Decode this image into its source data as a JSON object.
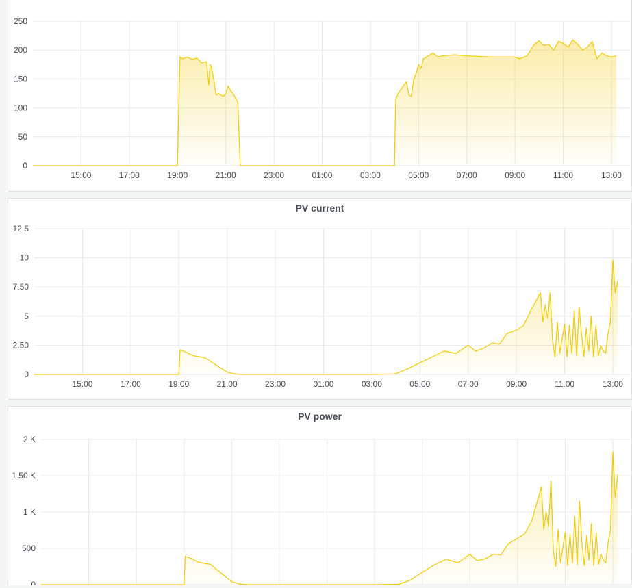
{
  "colors": {
    "series": "#f2cc0c",
    "grid": "#e9e9e9",
    "text": "#464c54",
    "background": "#ffffff"
  },
  "panels": [
    {
      "title": "",
      "chart_data": {
        "type": "area",
        "title": "",
        "x_ticks": [
          "15:00",
          "17:00",
          "19:00",
          "21:00",
          "23:00",
          "01:00",
          "03:00",
          "05:00",
          "07:00",
          "09:00",
          "11:00",
          "13:00"
        ],
        "y_ticks": [
          "0",
          "50",
          "100",
          "150",
          "200",
          "250"
        ],
        "ylim": [
          0,
          250
        ],
        "xlim_hours": [
          13.0,
          37.2
        ],
        "grid": true,
        "series": [
          {
            "x_hours": [
              13.0,
              14.0,
              15.0,
              16.0,
              17.0,
              18.0,
              19.0,
              19.05,
              19.1,
              19.2,
              19.4,
              19.6,
              19.8,
              20.0,
              20.2,
              20.3,
              20.35,
              20.4,
              20.5,
              20.6,
              20.7,
              20.9,
              21.0,
              21.1,
              21.2,
              21.3,
              21.4,
              21.5,
              21.6,
              21.65,
              22.0,
              23.0,
              24.0,
              25.0,
              26.0,
              27.0,
              28.0,
              28.05,
              28.1,
              28.2,
              28.4,
              28.5,
              28.6,
              28.7,
              28.8,
              28.9,
              29.0,
              29.1,
              29.2,
              29.4,
              29.6,
              29.8,
              30.0,
              30.5,
              31.0,
              31.5,
              32.0,
              32.5,
              33.0,
              33.2,
              33.5,
              33.8,
              34.0,
              34.2,
              34.4,
              34.6,
              34.8,
              35.0,
              35.2,
              35.4,
              35.6,
              35.8,
              36.0,
              36.2,
              36.4,
              36.6,
              36.8,
              37.0,
              37.2
            ],
            "y": [
              0,
              0,
              0,
              0,
              0,
              0,
              0,
              100,
              188,
              185,
              188,
              184,
              186,
              178,
              180,
              140,
              175,
              172,
              150,
              122,
              125,
              120,
              125,
              138,
              130,
              125,
              118,
              110,
              0,
              0,
              0,
              0,
              0,
              0,
              0,
              0,
              0,
              115,
              120,
              128,
              140,
              145,
              122,
              120,
              150,
              160,
              175,
              168,
              185,
              190,
              195,
              188,
              190,
              192,
              190,
              189,
              188,
              188,
              188,
              185,
              190,
              210,
              216,
              208,
              210,
              200,
              215,
              212,
              205,
              218,
              210,
              200,
              205,
              215,
              185,
              195,
              190,
              188,
              190
            ]
          }
        ]
      }
    },
    {
      "title": "PV current",
      "chart_data": {
        "type": "area",
        "title": "PV current",
        "x_ticks": [
          "15:00",
          "17:00",
          "19:00",
          "21:00",
          "23:00",
          "01:00",
          "03:00",
          "05:00",
          "07:00",
          "09:00",
          "11:00",
          "13:00"
        ],
        "y_ticks": [
          "0",
          "2.50",
          "5",
          "7.50",
          "10",
          "12.5"
        ],
        "ylim": [
          0,
          12.5
        ],
        "xlim_hours": [
          13.0,
          37.2
        ],
        "grid": true,
        "series": [
          {
            "x_hours": [
              13.0,
              15.0,
              17.0,
              18.9,
              19.0,
              19.05,
              19.3,
              19.6,
              19.9,
              20.1,
              20.4,
              20.7,
              21.0,
              21.3,
              21.6,
              22.0,
              23.0,
              24.0,
              25.0,
              26.0,
              27.0,
              28.0,
              28.5,
              29.0,
              29.5,
              30.0,
              30.5,
              31.0,
              31.3,
              31.6,
              32.0,
              32.3,
              32.6,
              33.0,
              33.3,
              33.6,
              34.0,
              34.1,
              34.2,
              34.3,
              34.4,
              34.5,
              34.6,
              34.7,
              34.8,
              35.0,
              35.1,
              35.2,
              35.3,
              35.4,
              35.5,
              35.6,
              35.7,
              35.8,
              35.9,
              36.0,
              36.1,
              36.2,
              36.3,
              36.4,
              36.5,
              36.6,
              36.7,
              36.8,
              36.9,
              37.0,
              37.05,
              37.1,
              37.2
            ],
            "y": [
              0,
              0,
              0,
              0,
              0,
              2.1,
              1.9,
              1.6,
              1.5,
              1.4,
              1.0,
              0.6,
              0.2,
              0.05,
              0,
              0,
              0,
              0,
              0,
              0,
              0,
              0.05,
              0.5,
              1.0,
              1.5,
              2.0,
              1.8,
              2.5,
              2.0,
              2.2,
              2.7,
              2.6,
              3.5,
              3.8,
              4.2,
              5.5,
              7.0,
              4.5,
              6.0,
              4.8,
              7.0,
              3.0,
              1.5,
              4.5,
              1.8,
              4.3,
              1.5,
              4.2,
              1.8,
              5.5,
              1.6,
              5.8,
              3.5,
              1.5,
              4.0,
              2.0,
              5.0,
              1.5,
              4.2,
              1.6,
              2.5,
              2.0,
              1.8,
              3.5,
              4.5,
              9.8,
              8.5,
              7.0,
              8.0
            ]
          }
        ]
      }
    },
    {
      "title": "PV power",
      "chart_data": {
        "type": "area",
        "title": "PV power",
        "x_ticks": [],
        "y_ticks": [
          "0",
          "500",
          "1 K",
          "1.50 K",
          "2 K"
        ],
        "ylim": [
          0,
          2000
        ],
        "xlim_hours": [
          13.0,
          37.2
        ],
        "grid": true,
        "series": [
          {
            "x_hours": [
              13.0,
              15.0,
              17.0,
              18.9,
              19.0,
              19.05,
              19.3,
              19.6,
              19.9,
              20.1,
              20.4,
              20.7,
              21.0,
              21.3,
              21.6,
              22.0,
              23.0,
              24.0,
              25.0,
              26.0,
              27.0,
              28.0,
              28.5,
              29.0,
              29.5,
              30.0,
              30.5,
              31.0,
              31.3,
              31.6,
              32.0,
              32.3,
              32.6,
              33.0,
              33.3,
              33.6,
              34.0,
              34.1,
              34.2,
              34.3,
              34.4,
              34.5,
              34.6,
              34.7,
              34.8,
              35.0,
              35.1,
              35.2,
              35.3,
              35.4,
              35.5,
              35.6,
              35.7,
              35.8,
              35.9,
              36.0,
              36.1,
              36.2,
              36.3,
              36.4,
              36.5,
              36.6,
              36.7,
              36.8,
              36.9,
              37.0,
              37.05,
              37.1,
              37.2
            ],
            "y": [
              0,
              0,
              0,
              0,
              0,
              390,
              360,
              310,
              290,
              280,
              200,
              120,
              40,
              10,
              0,
              0,
              0,
              0,
              0,
              0,
              0,
              5,
              60,
              170,
              270,
              350,
              300,
              420,
              330,
              350,
              420,
              410,
              560,
              640,
              700,
              880,
              1350,
              760,
              1000,
              800,
              1430,
              470,
              250,
              760,
              300,
              720,
              260,
              700,
              300,
              940,
              270,
              1150,
              580,
              260,
              680,
              340,
              840,
              260,
              720,
              280,
              420,
              340,
              300,
              580,
              760,
              1830,
              1500,
              1200,
              1520
            ]
          }
        ]
      }
    }
  ]
}
